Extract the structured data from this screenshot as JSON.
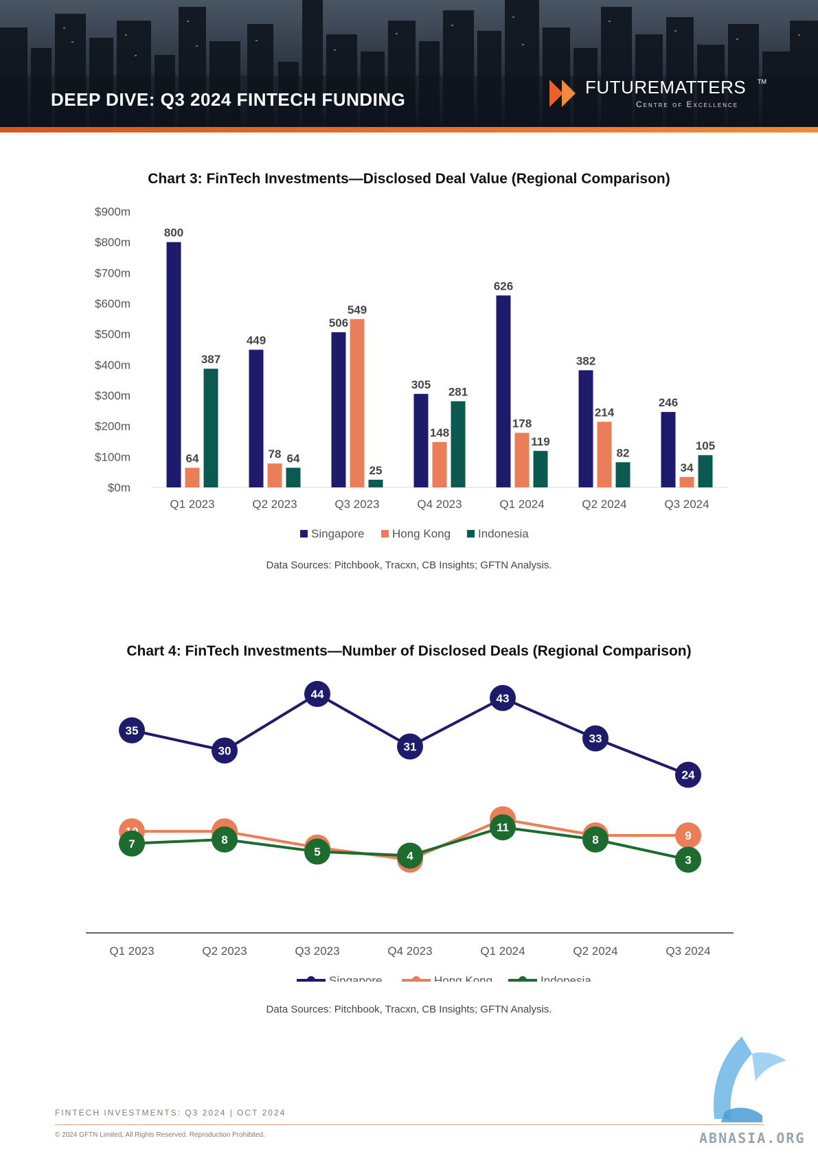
{
  "header": {
    "title": "DEEP DIVE: Q3 2024 FINTECH FUNDING",
    "brand_name": "FUTUREMATTERS",
    "brand_tm": "TM",
    "brand_sub": "Centre of Excellence"
  },
  "colors": {
    "singapore": "#1e1b6b",
    "hong_kong": "#ea7e58",
    "indonesia": "#0b5a52",
    "indonesia_line": "#1e6b2f",
    "accent": "#e8622a"
  },
  "chart3": {
    "title": "Chart 3: FinTech Investments—Disclosed Deal Value (Regional Comparison)",
    "source": "Data Sources: Pitchbook, Tracxn, CB Insights; GFTN Analysis."
  },
  "chart4": {
    "title": "Chart 4: FinTech Investments—Number of Disclosed Deals (Regional Comparison)",
    "source": "Data Sources: Pitchbook, Tracxn, CB Insights; GFTN Analysis."
  },
  "chart_data": [
    {
      "type": "bar",
      "categories": [
        "Q1 2023",
        "Q2 2023",
        "Q3 2023",
        "Q4 2023",
        "Q1 2024",
        "Q2 2024",
        "Q3 2024"
      ],
      "series": [
        {
          "name": "Singapore",
          "values": [
            800,
            449,
            506,
            305,
            626,
            382,
            246
          ]
        },
        {
          "name": "Hong Kong",
          "values": [
            64,
            78,
            549,
            148,
            178,
            214,
            34
          ]
        },
        {
          "name": "Indonesia",
          "values": [
            387,
            64,
            25,
            281,
            119,
            82,
            105
          ]
        }
      ],
      "yticks": [
        "$0m",
        "$100m",
        "$200m",
        "$300m",
        "$400m",
        "$500m",
        "$600m",
        "$700m",
        "$800m",
        "$900m"
      ],
      "ylim": [
        0,
        900
      ],
      "legend": "bottom"
    },
    {
      "type": "line",
      "categories": [
        "Q1 2023",
        "Q2 2023",
        "Q3 2023",
        "Q4 2023",
        "Q1 2024",
        "Q2 2024",
        "Q3 2024"
      ],
      "series": [
        {
          "name": "Singapore",
          "values": [
            35,
            30,
            44,
            31,
            43,
            33,
            24
          ]
        },
        {
          "name": "Hong Kong",
          "values": [
            10,
            10,
            6,
            3,
            13,
            9,
            9
          ]
        },
        {
          "name": "Indonesia",
          "values": [
            7,
            8,
            5,
            4,
            11,
            8,
            3
          ]
        }
      ],
      "legend": "bottom"
    }
  ],
  "footer": {
    "left": "FINTECH INVESTMENTS: Q3 2024   | OCT 2024",
    "copyright": "© 2024 GFTN Limited, All Rights Reserved. Reproduction Prohibited.",
    "watermark": "ABNASIA.ORG"
  }
}
